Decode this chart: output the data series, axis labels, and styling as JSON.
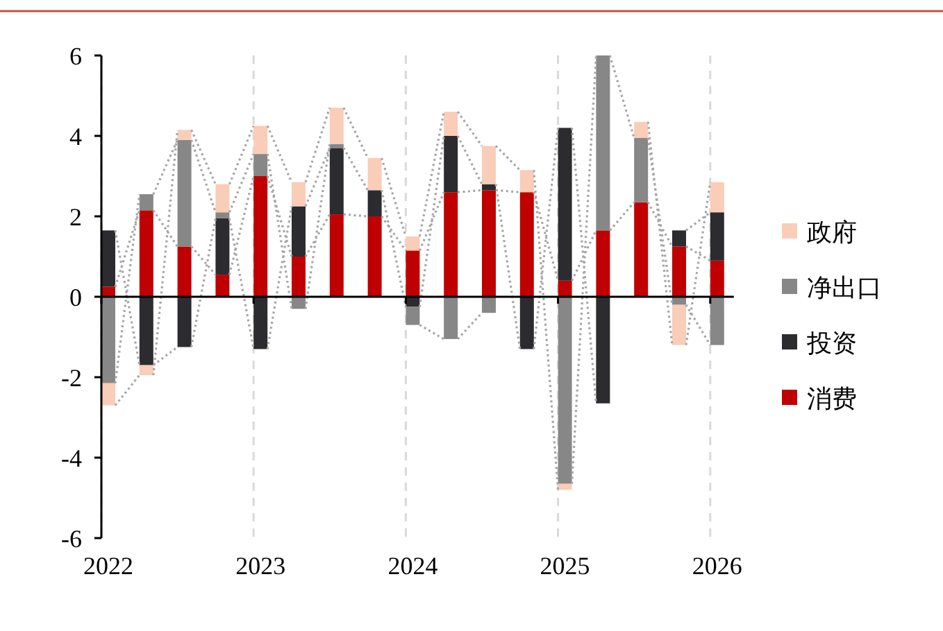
{
  "chart_data": {
    "type": "bar",
    "stacked": true,
    "categories": [
      "2022",
      null,
      null,
      null,
      "2023",
      null,
      null,
      null,
      "2024",
      null,
      null,
      null,
      "2025",
      null,
      null,
      null,
      "2026"
    ],
    "series": [
      {
        "name": "消费",
        "color": "#c00000",
        "values": [
          0.25,
          2.15,
          1.25,
          0.55,
          3.0,
          1.0,
          2.05,
          2.0,
          1.15,
          2.6,
          2.65,
          2.6,
          0.4,
          1.65,
          2.35,
          1.25,
          0.9
        ]
      },
      {
        "name": "投资",
        "color": "#2b2b30",
        "values": [
          1.4,
          -1.7,
          -1.25,
          1.4,
          -1.3,
          1.25,
          1.65,
          0.65,
          -0.25,
          1.4,
          0.15,
          -1.3,
          3.8,
          -2.65,
          0,
          0.4,
          1.2
        ]
      },
      {
        "name": "净出口",
        "color": "#878787",
        "values": [
          -2.15,
          0.4,
          2.65,
          0.15,
          0.55,
          -0.3,
          0.1,
          0,
          -0.45,
          -1.05,
          -0.4,
          0,
          -4.65,
          4.35,
          1.6,
          -0.2,
          -1.2
        ]
      },
      {
        "name": "政府",
        "color": "#f9cdb8",
        "values": [
          -0.55,
          -0.25,
          0.25,
          0.7,
          0.7,
          0.6,
          0.9,
          0.8,
          0.35,
          0.6,
          0.95,
          0.55,
          -0.15,
          0,
          0.4,
          -1.0,
          0.75
        ]
      }
    ],
    "ylim": [
      -6,
      6
    ],
    "yticks": [
      -6,
      -4,
      -2,
      0,
      2,
      4,
      6
    ],
    "grid": "x",
    "legend": "right"
  }
}
